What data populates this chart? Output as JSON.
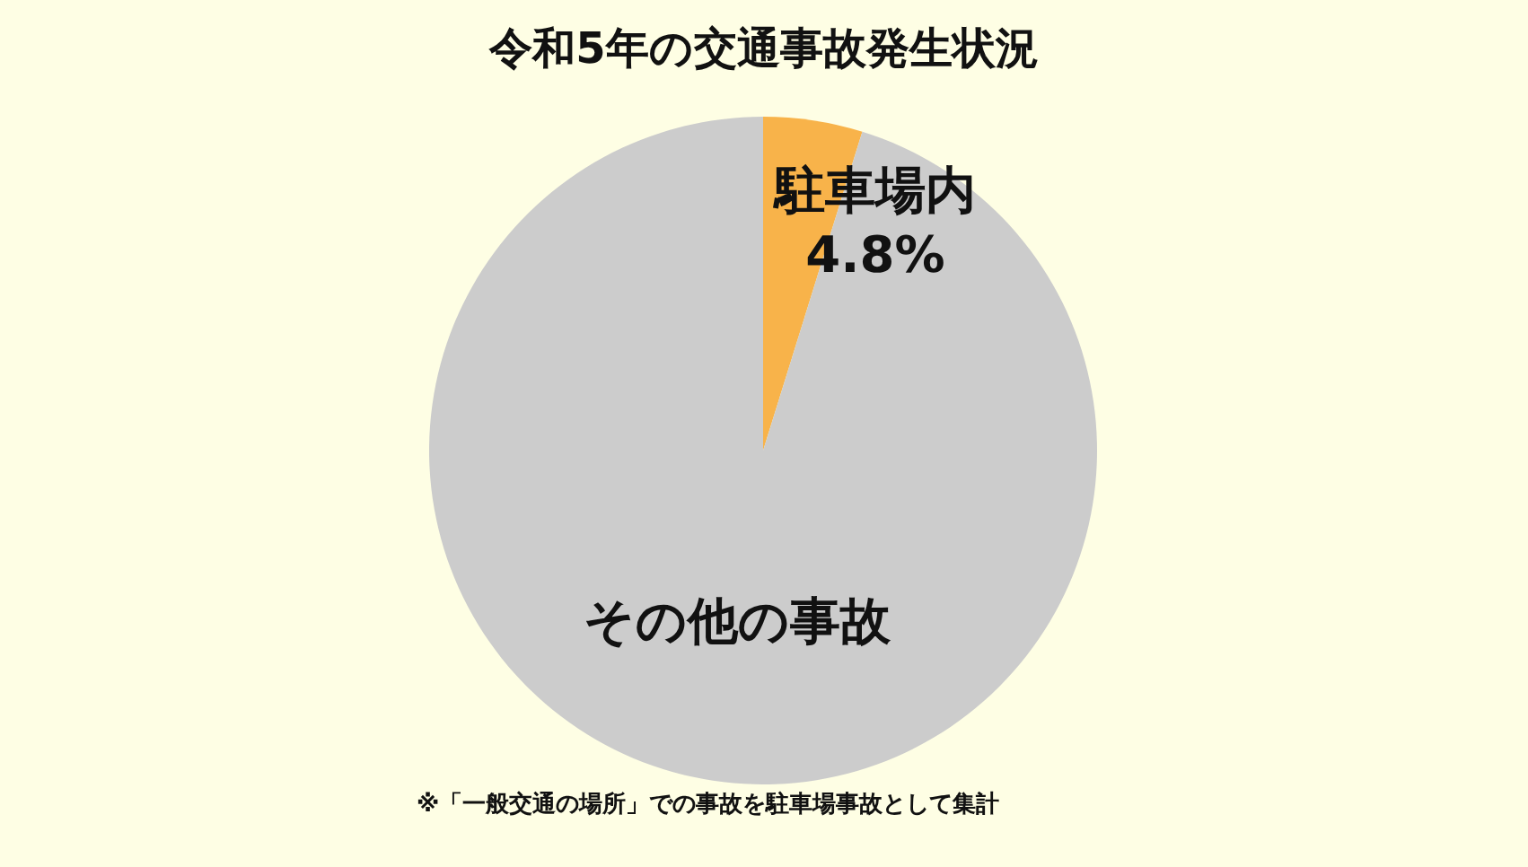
{
  "chart_data": {
    "type": "pie",
    "title": "令和5年の交通事故発生状況",
    "categories": [
      "駐車場内",
      "その他の事故"
    ],
    "values": [
      4.8,
      95.2
    ],
    "colors": [
      "#f8b34a",
      "#cccccc"
    ],
    "value_labels": [
      "4.8%",
      null
    ],
    "annotations": [
      "※「一般交通の場所」での事故を駐車場事故として集計"
    ]
  }
}
